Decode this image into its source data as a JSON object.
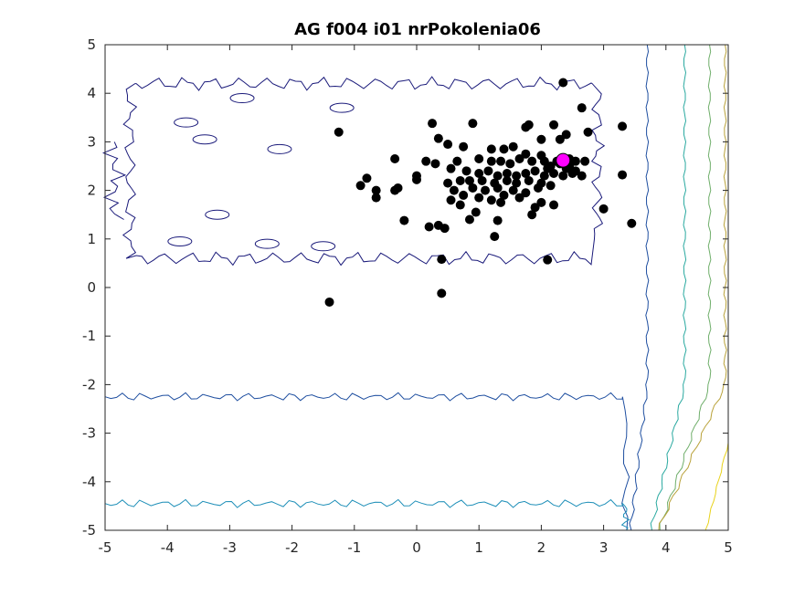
{
  "chart_data": {
    "type": "scatter",
    "title": "AG f004 i01 nrPokolenia06",
    "xlabel": "",
    "ylabel": "",
    "xlim": [
      -5,
      5
    ],
    "ylim": [
      -5,
      5
    ],
    "xticks": [
      "-5",
      "-4",
      "-3",
      "-2",
      "-1",
      "0",
      "1",
      "2",
      "3",
      "4",
      "5"
    ],
    "yticks": [
      "-5",
      "-4",
      "-3",
      "-2",
      "-1",
      "0",
      "1",
      "2",
      "3",
      "4",
      "5"
    ],
    "grid": false,
    "background": "contour",
    "colors": {
      "population": "#000000",
      "best": "#ff00ff",
      "contour_levels": [
        "#1a1a7a",
        "#1f4fa0",
        "#1e8fb8",
        "#2aa9a0",
        "#6fae6a",
        "#b9a23a",
        "#e8d21a"
      ]
    },
    "series": [
      {
        "points": [
          [
            2.35,
            4.22
          ],
          [
            1.8,
            3.35
          ],
          [
            2.65,
            3.7
          ],
          [
            0.9,
            3.38
          ],
          [
            0.25,
            3.38
          ],
          [
            3.3,
            3.32
          ],
          [
            -1.25,
            3.2
          ],
          [
            1.75,
            3.3
          ],
          [
            2.2,
            3.35
          ],
          [
            2.4,
            3.15
          ],
          [
            2.75,
            3.2
          ],
          [
            0.35,
            3.07
          ],
          [
            2.0,
            3.05
          ],
          [
            2.3,
            3.05
          ],
          [
            0.5,
            2.95
          ],
          [
            0.75,
            2.9
          ],
          [
            1.55,
            2.9
          ],
          [
            1.2,
            2.85
          ],
          [
            1.4,
            2.85
          ],
          [
            1.75,
            2.75
          ],
          [
            2.0,
            2.72
          ],
          [
            -0.35,
            2.65
          ],
          [
            0.15,
            2.6
          ],
          [
            0.65,
            2.6
          ],
          [
            1.0,
            2.65
          ],
          [
            1.2,
            2.6
          ],
          [
            1.35,
            2.6
          ],
          [
            1.5,
            2.55
          ],
          [
            1.65,
            2.65
          ],
          [
            1.85,
            2.6
          ],
          [
            2.05,
            2.6
          ],
          [
            2.15,
            2.5
          ],
          [
            2.3,
            2.55
          ],
          [
            2.45,
            2.5
          ],
          [
            2.55,
            2.4
          ],
          [
            2.7,
            2.6
          ],
          [
            0.3,
            2.55
          ],
          [
            0.55,
            2.45
          ],
          [
            0.8,
            2.4
          ],
          [
            1.0,
            2.35
          ],
          [
            1.15,
            2.4
          ],
          [
            1.3,
            2.3
          ],
          [
            1.45,
            2.35
          ],
          [
            1.6,
            2.3
          ],
          [
            1.75,
            2.35
          ],
          [
            1.9,
            2.4
          ],
          [
            2.05,
            2.3
          ],
          [
            2.2,
            2.35
          ],
          [
            2.35,
            2.3
          ],
          [
            2.5,
            2.35
          ],
          [
            2.65,
            2.3
          ],
          [
            3.3,
            2.32
          ],
          [
            0.0,
            2.3
          ],
          [
            0.85,
            2.2
          ],
          [
            1.05,
            2.2
          ],
          [
            1.25,
            2.15
          ],
          [
            1.45,
            2.2
          ],
          [
            1.6,
            2.15
          ],
          [
            1.8,
            2.2
          ],
          [
            2.0,
            2.15
          ],
          [
            -0.8,
            2.25
          ],
          [
            0.0,
            2.22
          ],
          [
            0.5,
            2.15
          ],
          [
            0.7,
            2.2
          ],
          [
            0.9,
            2.05
          ],
          [
            1.1,
            2.0
          ],
          [
            1.3,
            2.05
          ],
          [
            1.55,
            2.0
          ],
          [
            1.75,
            1.95
          ],
          [
            1.95,
            2.05
          ],
          [
            2.15,
            2.1
          ],
          [
            -0.9,
            2.1
          ],
          [
            -0.65,
            2.0
          ],
          [
            -0.3,
            2.05
          ],
          [
            -0.35,
            2.0
          ],
          [
            0.6,
            2.0
          ],
          [
            0.75,
            1.9
          ],
          [
            1.0,
            1.85
          ],
          [
            1.2,
            1.8
          ],
          [
            1.4,
            1.9
          ],
          [
            1.65,
            1.85
          ],
          [
            2.0,
            1.75
          ],
          [
            2.2,
            1.7
          ],
          [
            -0.65,
            1.85
          ],
          [
            0.55,
            1.8
          ],
          [
            0.7,
            1.7
          ],
          [
            1.35,
            1.75
          ],
          [
            1.9,
            1.65
          ],
          [
            0.95,
            1.55
          ],
          [
            1.85,
            1.5
          ],
          [
            3.0,
            1.62
          ],
          [
            -0.2,
            1.38
          ],
          [
            0.85,
            1.4
          ],
          [
            1.3,
            1.38
          ],
          [
            0.35,
            1.28
          ],
          [
            0.45,
            1.22
          ],
          [
            0.2,
            1.25
          ],
          [
            1.25,
            1.05
          ],
          [
            3.45,
            1.32
          ],
          [
            2.1,
            2.45
          ],
          [
            2.25,
            2.6
          ],
          [
            2.45,
            2.65
          ],
          [
            2.55,
            2.6
          ],
          [
            2.4,
            2.45
          ],
          [
            0.4,
            0.58
          ],
          [
            2.1,
            0.57
          ],
          [
            0.4,
            -0.12
          ],
          [
            -1.4,
            -0.3
          ]
        ]
      },
      {
        "name": "best",
        "points": [
          [
            2.35,
            2.62
          ]
        ]
      }
    ]
  }
}
